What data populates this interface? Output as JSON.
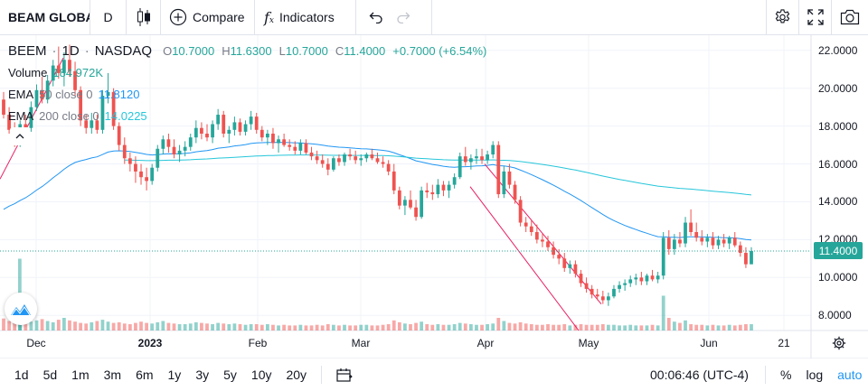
{
  "toolbar": {
    "symbol": "BEAM GLOBAL",
    "interval": "D",
    "compare_label": "Compare",
    "indicators_label": "Indicators"
  },
  "legend": {
    "ticker": "BEEM",
    "interval": "1D",
    "exchange": "NASDAQ",
    "open_key": "O",
    "open": "10.7000",
    "high_key": "H",
    "high": "11.6300",
    "low_key": "L",
    "low": "10.7000",
    "close_key": "C",
    "close": "11.4000",
    "change": "+0.7000 (+6.54%)",
    "volume_label": "Volume",
    "volume_value": "184.972K",
    "ema50_label": "EMA",
    "ema50_params": "50 close 0",
    "ema50_value": "11.8120",
    "ema200_label": "EMA",
    "ema200_params": "200 close 0",
    "ema200_value": "14.0225"
  },
  "price_scale": {
    "labels": [
      "22.0000",
      "20.0000",
      "18.0000",
      "16.0000",
      "14.0000",
      "12.0000",
      "10.0000",
      "8.0000"
    ],
    "last_price": "11.4000"
  },
  "time_scale": {
    "labels": [
      {
        "text": "Dec",
        "bold": false
      },
      {
        "text": "2023",
        "bold": true
      },
      {
        "text": "Feb",
        "bold": false
      },
      {
        "text": "Mar",
        "bold": false
      },
      {
        "text": "Apr",
        "bold": false
      },
      {
        "text": "May",
        "bold": false
      },
      {
        "text": "Jun",
        "bold": false
      },
      {
        "text": "21",
        "bold": false
      }
    ]
  },
  "bottom_bar": {
    "ranges": [
      "1d",
      "5d",
      "1m",
      "3m",
      "6m",
      "1y",
      "3y",
      "5y",
      "10y",
      "20y"
    ],
    "clock": "00:06:46 (UTC-4)",
    "percent_label": "%",
    "log_label": "log",
    "auto_label": "auto"
  },
  "colors": {
    "up": "#26a69a",
    "down": "#ef5350",
    "ema50": "#2196f3",
    "ema200": "#26c6da",
    "trendline": "#e91e63",
    "grid": "#f0f3fa"
  },
  "icons": [
    "candles-style-icon",
    "plus-circle-icon",
    "fx-icon",
    "undo-icon",
    "redo-icon",
    "settings-icon",
    "fullscreen-icon",
    "camera-icon",
    "date-range-icon",
    "gear-icon",
    "logo-icon",
    "chevron-up-icon"
  ],
  "chart_data": {
    "type": "candlestick",
    "title": "BEEM 1D NASDAQ",
    "ylim": [
      7.2,
      22.8
    ],
    "x_ticks": [
      "Dec",
      "2023",
      "Feb",
      "Mar",
      "Apr",
      "May",
      "Jun",
      "21"
    ],
    "y_ticks": [
      8,
      10,
      12,
      14,
      16,
      18,
      20,
      22
    ],
    "grid": true,
    "candles": [
      [
        19.4,
        19.8,
        18.4,
        18.6
      ],
      [
        18.6,
        19.0,
        17.6,
        17.8
      ],
      [
        17.8,
        18.2,
        16.9,
        17.1
      ],
      [
        17.1,
        18.3,
        16.9,
        18.1
      ],
      [
        18.1,
        18.6,
        17.7,
        17.9
      ],
      [
        17.9,
        19.3,
        17.7,
        19.0
      ],
      [
        19.0,
        20.2,
        18.8,
        19.9
      ],
      [
        19.9,
        20.6,
        19.2,
        19.4
      ],
      [
        19.4,
        20.7,
        19.2,
        20.4
      ],
      [
        20.4,
        21.5,
        20.1,
        21.2
      ],
      [
        21.2,
        22.2,
        20.5,
        20.8
      ],
      [
        20.8,
        21.9,
        20.1,
        21.5
      ],
      [
        21.5,
        22.3,
        20.6,
        20.9
      ],
      [
        20.9,
        21.4,
        19.6,
        19.9
      ],
      [
        19.9,
        20.1,
        18.0,
        18.3
      ],
      [
        18.3,
        18.6,
        17.6,
        17.9
      ],
      [
        17.9,
        18.7,
        17.6,
        18.3
      ],
      [
        18.3,
        18.6,
        17.6,
        17.8
      ],
      [
        17.8,
        19.9,
        17.6,
        19.6
      ],
      [
        19.6,
        20.8,
        19.2,
        19.8
      ],
      [
        19.8,
        20.0,
        17.8,
        18.0
      ],
      [
        18.0,
        18.2,
        16.7,
        17.0
      ],
      [
        17.0,
        17.4,
        16.0,
        16.3
      ],
      [
        16.3,
        16.6,
        15.6,
        16.0
      ],
      [
        16.0,
        16.4,
        15.0,
        15.6
      ],
      [
        15.6,
        16.0,
        14.9,
        15.3
      ],
      [
        15.3,
        15.8,
        14.6,
        15.1
      ],
      [
        15.1,
        16.0,
        14.9,
        15.8
      ],
      [
        15.8,
        17.0,
        15.6,
        16.8
      ],
      [
        16.8,
        17.5,
        16.5,
        17.3
      ],
      [
        17.3,
        17.6,
        16.6,
        16.9
      ],
      [
        16.9,
        17.3,
        16.3,
        16.5
      ],
      [
        16.5,
        17.0,
        16.1,
        16.7
      ],
      [
        16.7,
        17.2,
        16.4,
        16.9
      ],
      [
        16.9,
        17.6,
        16.7,
        17.4
      ],
      [
        17.4,
        18.3,
        17.1,
        17.9
      ],
      [
        17.9,
        18.2,
        17.3,
        17.6
      ],
      [
        17.6,
        18.1,
        17.2,
        17.4
      ],
      [
        17.4,
        18.3,
        17.1,
        18.1
      ],
      [
        18.1,
        18.9,
        17.8,
        18.6
      ],
      [
        18.6,
        18.8,
        17.4,
        17.6
      ],
      [
        17.6,
        18.0,
        17.1,
        17.8
      ],
      [
        17.8,
        18.5,
        17.5,
        18.2
      ],
      [
        18.2,
        18.4,
        17.5,
        17.7
      ],
      [
        17.7,
        18.3,
        17.5,
        18.1
      ],
      [
        18.1,
        18.8,
        17.8,
        18.5
      ],
      [
        18.5,
        18.7,
        17.6,
        17.8
      ],
      [
        17.8,
        18.0,
        17.2,
        17.4
      ],
      [
        17.4,
        17.8,
        17.0,
        17.6
      ],
      [
        17.6,
        17.9,
        16.8,
        17.1
      ],
      [
        17.1,
        17.5,
        16.6,
        17.3
      ],
      [
        17.3,
        17.6,
        16.9,
        17.0
      ],
      [
        17.0,
        17.3,
        16.7,
        16.9
      ],
      [
        16.9,
        17.2,
        16.5,
        16.7
      ],
      [
        16.7,
        17.3,
        16.5,
        17.1
      ],
      [
        17.1,
        17.3,
        16.5,
        16.6
      ],
      [
        16.6,
        16.9,
        16.2,
        16.4
      ],
      [
        16.4,
        16.7,
        16.0,
        16.2
      ],
      [
        16.2,
        16.5,
        15.8,
        16.0
      ],
      [
        16.0,
        16.3,
        15.4,
        15.7
      ],
      [
        15.7,
        16.4,
        15.6,
        16.3
      ],
      [
        16.3,
        16.5,
        15.9,
        16.1
      ],
      [
        16.1,
        16.6,
        15.9,
        16.5
      ],
      [
        16.5,
        16.8,
        16.2,
        16.4
      ],
      [
        16.4,
        16.7,
        16.0,
        16.2
      ],
      [
        16.2,
        16.5,
        15.9,
        16.3
      ],
      [
        16.3,
        16.6,
        16.1,
        16.5
      ],
      [
        16.5,
        16.8,
        16.2,
        16.3
      ],
      [
        16.3,
        16.6,
        16.0,
        16.1
      ],
      [
        16.1,
        16.4,
        15.8,
        16.0
      ],
      [
        16.0,
        16.2,
        15.4,
        15.6
      ],
      [
        15.6,
        16.0,
        14.4,
        14.6
      ],
      [
        14.6,
        14.8,
        13.6,
        13.8
      ],
      [
        13.8,
        14.3,
        13.3,
        14.1
      ],
      [
        14.1,
        14.6,
        13.6,
        13.7
      ],
      [
        13.7,
        14.1,
        13.0,
        13.2
      ],
      [
        13.2,
        14.8,
        13.1,
        14.6
      ],
      [
        14.6,
        15.0,
        14.2,
        14.5
      ],
      [
        14.5,
        14.9,
        14.1,
        14.4
      ],
      [
        14.4,
        15.2,
        14.2,
        14.9
      ],
      [
        14.9,
        15.1,
        14.3,
        14.6
      ],
      [
        14.6,
        15.1,
        14.2,
        14.9
      ],
      [
        14.9,
        15.5,
        14.7,
        15.3
      ],
      [
        15.3,
        16.6,
        15.2,
        16.4
      ],
      [
        16.4,
        16.9,
        15.9,
        16.1
      ],
      [
        16.1,
        16.5,
        15.7,
        16.3
      ],
      [
        16.3,
        16.8,
        16.0,
        16.4
      ],
      [
        16.4,
        16.8,
        16.0,
        16.2
      ],
      [
        16.2,
        16.7,
        16.0,
        16.5
      ],
      [
        16.5,
        17.2,
        16.3,
        17.0
      ],
      [
        17.0,
        17.2,
        14.2,
        14.4
      ],
      [
        14.4,
        15.9,
        14.2,
        15.6
      ],
      [
        15.6,
        16.0,
        14.7,
        14.9
      ],
      [
        14.9,
        15.1,
        13.9,
        14.1
      ],
      [
        14.1,
        14.3,
        12.7,
        12.9
      ],
      [
        12.9,
        13.2,
        12.4,
        12.7
      ],
      [
        12.7,
        13.0,
        12.2,
        12.4
      ],
      [
        12.4,
        12.8,
        11.8,
        12.0
      ],
      [
        12.0,
        12.3,
        11.6,
        11.9
      ],
      [
        11.9,
        12.2,
        11.4,
        11.6
      ],
      [
        11.6,
        11.9,
        11.0,
        11.2
      ],
      [
        11.2,
        11.5,
        10.7,
        11.0
      ],
      [
        11.0,
        11.3,
        10.3,
        10.5
      ],
      [
        10.5,
        10.9,
        10.2,
        10.7
      ],
      [
        10.7,
        10.9,
        10.0,
        10.2
      ],
      [
        10.2,
        10.4,
        9.5,
        9.7
      ],
      [
        9.7,
        10.0,
        9.2,
        9.4
      ],
      [
        9.4,
        9.6,
        8.9,
        9.1
      ],
      [
        9.1,
        9.4,
        8.8,
        9.0
      ],
      [
        9.0,
        9.3,
        8.6,
        8.8
      ],
      [
        8.8,
        9.2,
        8.5,
        9.0
      ],
      [
        9.0,
        9.6,
        8.9,
        9.4
      ],
      [
        9.4,
        9.8,
        9.2,
        9.6
      ],
      [
        9.6,
        9.9,
        9.3,
        9.7
      ],
      [
        9.7,
        10.1,
        9.5,
        9.9
      ],
      [
        9.9,
        10.2,
        9.6,
        10.0
      ],
      [
        10.0,
        10.3,
        9.6,
        9.8
      ],
      [
        9.8,
        10.2,
        9.6,
        10.1
      ],
      [
        10.1,
        10.4,
        9.8,
        9.9
      ],
      [
        9.9,
        10.3,
        9.7,
        10.1
      ],
      [
        10.1,
        12.4,
        9.9,
        12.1
      ],
      [
        12.1,
        12.5,
        11.2,
        11.5
      ],
      [
        11.5,
        12.3,
        11.2,
        12.0
      ],
      [
        12.0,
        12.4,
        11.6,
        11.8
      ],
      [
        11.8,
        13.2,
        11.6,
        12.9
      ],
      [
        12.9,
        13.6,
        12.2,
        12.4
      ],
      [
        12.4,
        12.9,
        11.9,
        12.1
      ],
      [
        12.1,
        12.5,
        11.7,
        11.9
      ],
      [
        11.9,
        12.3,
        11.6,
        12.1
      ],
      [
        12.1,
        12.4,
        11.5,
        11.7
      ],
      [
        11.7,
        12.2,
        11.5,
        12.0
      ],
      [
        12.0,
        12.3,
        11.6,
        11.8
      ],
      [
        11.8,
        12.2,
        11.5,
        12.1
      ],
      [
        12.1,
        12.4,
        11.6,
        11.7
      ],
      [
        11.7,
        11.9,
        11.1,
        11.3
      ],
      [
        11.3,
        11.6,
        10.5,
        10.7
      ],
      [
        10.7,
        11.6,
        10.7,
        11.4
      ]
    ],
    "volume_profile": [
      0.19,
      0.15,
      0.14,
      0.13,
      0.12,
      0.14,
      0.16,
      0.18,
      0.15,
      0.13,
      0.17,
      0.2,
      0.16,
      0.14,
      0.12,
      0.11,
      0.13,
      0.15,
      0.17,
      0.14,
      0.12,
      0.13,
      0.11,
      0.1,
      0.12,
      0.14,
      0.12,
      0.11,
      0.13,
      0.15,
      0.12,
      0.11,
      0.1,
      0.1,
      0.11,
      0.13,
      0.12,
      0.11,
      0.1,
      0.12,
      0.11,
      0.1,
      0.11,
      0.1,
      0.09,
      0.1,
      0.1,
      0.09,
      0.1,
      0.09,
      0.08,
      0.09,
      0.08,
      0.08,
      0.09,
      0.08,
      0.08,
      0.09,
      0.08,
      0.1,
      0.09,
      0.08,
      0.09,
      0.08,
      0.08,
      0.09,
      0.09,
      0.08,
      0.08,
      0.09,
      0.1,
      0.16,
      0.13,
      0.11,
      0.1,
      0.12,
      0.14,
      0.1,
      0.09,
      0.1,
      0.09,
      0.09,
      0.1,
      0.12,
      0.11,
      0.1,
      0.09,
      0.09,
      0.1,
      0.11,
      0.2,
      0.15,
      0.12,
      0.11,
      0.13,
      0.11,
      0.1,
      0.09,
      0.09,
      0.1,
      0.09,
      0.09,
      0.1,
      0.08,
      0.09,
      0.1,
      0.09,
      0.09,
      0.09,
      0.1,
      0.09,
      0.09,
      0.08,
      0.08,
      0.09,
      0.08,
      0.08,
      0.08,
      0.09,
      0.08,
      0.55,
      0.2,
      0.14,
      0.12,
      0.16,
      0.1,
      0.09,
      0.09,
      0.08,
      0.09,
      0.08,
      0.08,
      0.09,
      0.08,
      0.09,
      0.1,
      0.1
    ],
    "volume_spike_left": 0.85
  }
}
